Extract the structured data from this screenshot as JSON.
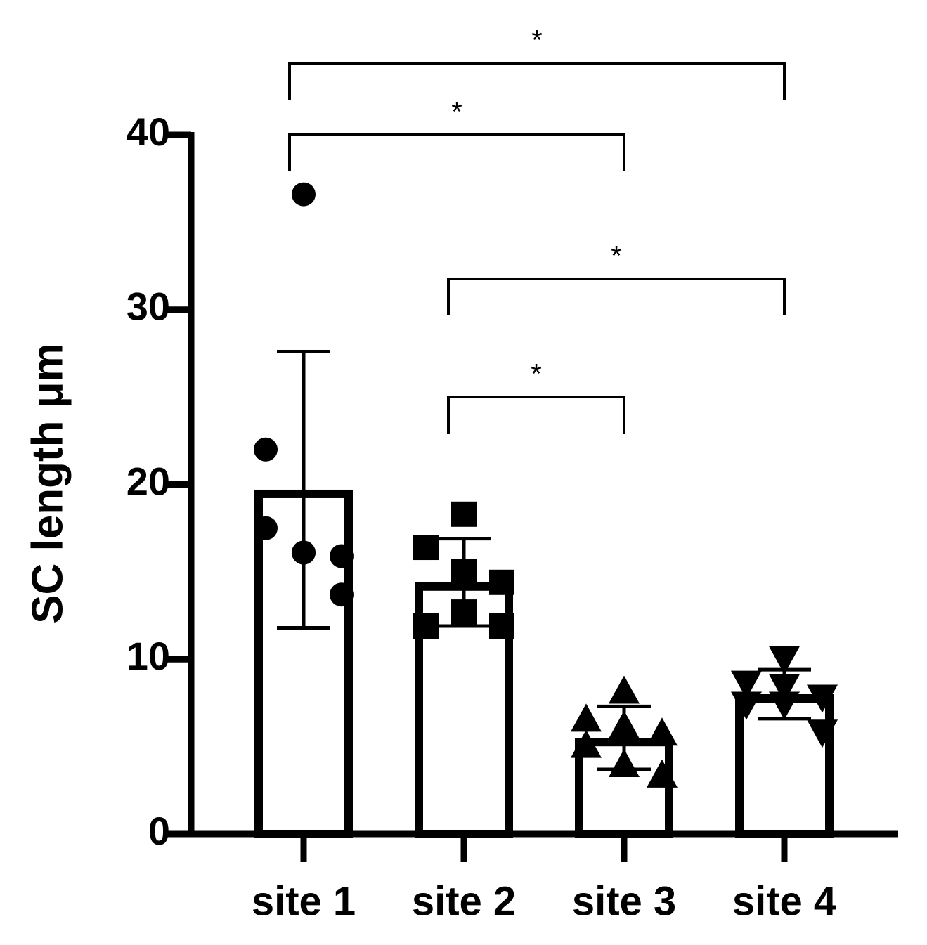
{
  "chart_data": {
    "type": "bar",
    "y_label": "SC length μm",
    "categories": [
      "site 1",
      "site 2",
      "site 3",
      "site 4"
    ],
    "values": [
      19.7,
      14.4,
      5.5,
      8.0
    ],
    "errors": [
      7.9,
      2.5,
      1.8,
      1.4
    ],
    "points": [
      [
        36.6,
        22.0,
        16.1,
        15.9,
        17.5,
        16.1,
        13.7
      ],
      [
        18.3,
        16.4,
        15.0,
        14.4,
        11.9,
        12.7,
        11.9
      ],
      [
        8.1,
        6.5,
        6.1,
        5.7,
        5.0,
        3.9,
        3.3
      ],
      [
        10.1,
        8.7,
        8.5,
        7.9,
        7.5,
        7.5,
        5.9
      ]
    ],
    "markers": [
      "circle",
      "square",
      "triangle-up",
      "triangle-down"
    ],
    "color": "#000000",
    "fill": "#ffffff",
    "ylim": [
      0,
      40
    ],
    "yticks": [
      0,
      10,
      20,
      30,
      40
    ],
    "comparisons": [
      {
        "groups": [
          0,
          3
        ],
        "label": "*"
      },
      {
        "groups": [
          0,
          2
        ],
        "label": "*"
      },
      {
        "groups": [
          1,
          3
        ],
        "label": "*"
      },
      {
        "groups": [
          1,
          2
        ],
        "label": "*"
      }
    ]
  }
}
